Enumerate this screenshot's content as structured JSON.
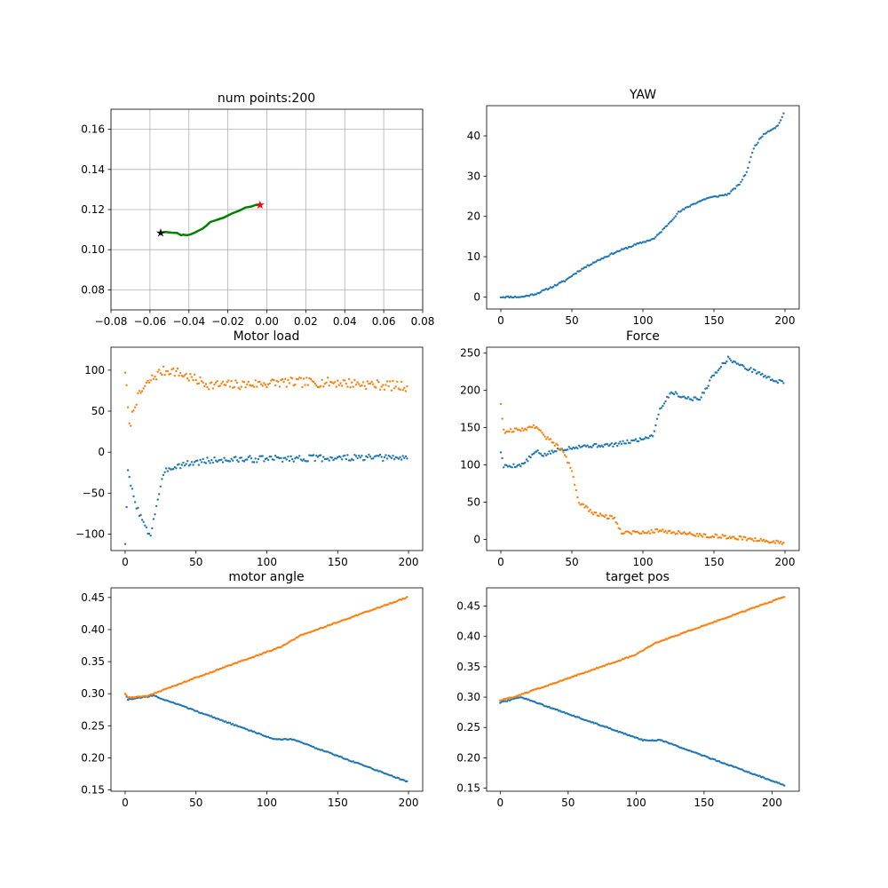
{
  "figure": {
    "background": "#ffffff",
    "colors": {
      "series1": "#1f77b4",
      "series2": "#ff7f0e",
      "path": "#008000",
      "start_marker": "#000000",
      "end_marker": "#ff0000",
      "grid": "#b0b0b0"
    }
  },
  "chart_data": [
    {
      "id": "trajectory",
      "type": "line",
      "title": "num points:200",
      "grid": true,
      "xlim": [
        -0.08,
        0.08
      ],
      "ylim": [
        0.07,
        0.17
      ],
      "xticks": [
        -0.08,
        -0.06,
        -0.04,
        -0.02,
        0.0,
        0.02,
        0.04,
        0.06,
        0.08
      ],
      "xtick_labels": [
        "−0.08",
        "−0.06",
        "−0.04",
        "−0.02",
        "0.00",
        "0.02",
        "0.04",
        "0.06",
        "0.08"
      ],
      "yticks": [
        0.08,
        0.1,
        0.12,
        0.14,
        0.16
      ],
      "ytick_labels": [
        "0.08",
        "0.10",
        "0.12",
        "0.14",
        "0.16"
      ],
      "series": [
        {
          "style": "line",
          "color": "#008000",
          "x": [
            -0.0545,
            -0.052,
            -0.049,
            -0.046,
            -0.044,
            -0.043,
            -0.041,
            -0.039,
            -0.037,
            -0.035,
            -0.033,
            -0.031,
            -0.029,
            -0.026,
            -0.022,
            -0.018,
            -0.014,
            -0.011,
            -0.008,
            -0.006,
            -0.0035
          ],
          "y": [
            0.1085,
            0.1088,
            0.1085,
            0.1083,
            0.1072,
            0.1075,
            0.1072,
            0.1077,
            0.1085,
            0.1095,
            0.1105,
            0.112,
            0.1138,
            0.1148,
            0.116,
            0.118,
            0.1195,
            0.121,
            0.1215,
            0.1222,
            0.1225
          ]
        }
      ],
      "markers": [
        {
          "role": "start",
          "x": -0.0545,
          "y": 0.1085,
          "color": "#000000"
        },
        {
          "role": "end",
          "x": -0.0035,
          "y": 0.1225,
          "color": "#ff0000"
        }
      ]
    },
    {
      "id": "yaw",
      "type": "scatter",
      "title": "YAW",
      "grid": false,
      "xlim": [
        -10,
        210
      ],
      "ylim": [
        -3,
        47.5
      ],
      "xticks": [
        0,
        50,
        100,
        150,
        200
      ],
      "xtick_labels": [
        "0",
        "50",
        "100",
        "150",
        "200"
      ],
      "yticks": [
        0,
        10,
        20,
        30,
        40
      ],
      "ytick_labels": [
        "0",
        "10",
        "20",
        "30",
        "40"
      ],
      "n": 200,
      "series": [
        {
          "color": "#1f77b4",
          "knots_x": [
            0,
            15,
            25,
            35,
            45,
            55,
            65,
            80,
            95,
            108,
            115,
            125,
            135,
            145,
            160,
            168,
            173,
            178,
            185,
            195,
            199
          ],
          "knots_y": [
            0,
            0,
            0.8,
            2.3,
            4,
            6.5,
            8.5,
            11,
            13,
            14.5,
            17,
            21,
            23,
            24.5,
            25.5,
            28,
            31,
            37,
            40.5,
            42.5,
            45.5
          ],
          "jitter": 0.2,
          "seed": 11
        }
      ]
    },
    {
      "id": "motor_load",
      "type": "scatter",
      "title": "Motor load",
      "grid": false,
      "xlim": [
        -10,
        210
      ],
      "ylim": [
        -120,
        128
      ],
      "xticks": [
        0,
        50,
        100,
        150,
        200
      ],
      "xtick_labels": [
        "0",
        "50",
        "100",
        "150",
        "200"
      ],
      "yticks": [
        -100,
        -50,
        0,
        50,
        100
      ],
      "ytick_labels": [
        "−100",
        "−50",
        "0",
        "50",
        "100"
      ],
      "n": 200,
      "series": [
        {
          "color": "#1f77b4",
          "knots_x": [
            0,
            2,
            6,
            10,
            15,
            18,
            22,
            26,
            30,
            40,
            60,
            100,
            150,
            199
          ],
          "knots_y": [
            -110,
            -25,
            -55,
            -75,
            -95,
            -100,
            -65,
            -35,
            -20,
            -15,
            -10,
            -8,
            -7,
            -7
          ],
          "jitter": 4,
          "seed": 3
        },
        {
          "color": "#ff7f0e",
          "knots_x": [
            0,
            3,
            7,
            12,
            18,
            25,
            32,
            40,
            50,
            60,
            80,
            110,
            150,
            199
          ],
          "knots_y": [
            100,
            30,
            60,
            75,
            88,
            98,
            100,
            95,
            88,
            82,
            82,
            85,
            85,
            80
          ],
          "jitter": 6,
          "seed": 7
        }
      ]
    },
    {
      "id": "force",
      "type": "scatter",
      "title": "Force",
      "grid": false,
      "xlim": [
        -10,
        210
      ],
      "ylim": [
        -15,
        258
      ],
      "xticks": [
        0,
        50,
        100,
        150,
        200
      ],
      "xtick_labels": [
        "0",
        "50",
        "100",
        "150",
        "200"
      ],
      "yticks": [
        0,
        50,
        100,
        150,
        200,
        250
      ],
      "ytick_labels": [
        "0",
        "50",
        "100",
        "150",
        "200",
        "250"
      ],
      "n": 200,
      "series": [
        {
          "color": "#1f77b4",
          "knots_x": [
            0,
            2,
            15,
            25,
            30,
            40,
            55,
            80,
            100,
            107,
            112,
            120,
            130,
            140,
            150,
            160,
            170,
            180,
            190,
            199
          ],
          "knots_y": [
            118,
            98,
            100,
            118,
            113,
            120,
            125,
            127,
            135,
            140,
            175,
            198,
            190,
            188,
            222,
            243,
            232,
            225,
            215,
            210
          ],
          "jitter": 2.5,
          "seed": 5
        },
        {
          "color": "#ff7f0e",
          "knots_x": [
            0,
            2,
            15,
            25,
            30,
            40,
            45,
            50,
            55,
            65,
            80,
            85,
            100,
            110,
            120,
            140,
            160,
            180,
            199
          ],
          "knots_y": [
            183,
            145,
            148,
            152,
            140,
            125,
            115,
            90,
            50,
            35,
            28,
            10,
            9,
            12,
            10,
            6,
            3,
            0,
            -5
          ],
          "jitter": 2.5,
          "seed": 9
        }
      ]
    },
    {
      "id": "motor_angle",
      "type": "scatter",
      "title": "motor angle",
      "grid": false,
      "xlim": [
        -10,
        210
      ],
      "ylim": [
        0.148,
        0.465
      ],
      "xticks": [
        0,
        50,
        100,
        150,
        200
      ],
      "xtick_labels": [
        "0",
        "50",
        "100",
        "150",
        "200"
      ],
      "yticks": [
        0.15,
        0.2,
        0.25,
        0.3,
        0.35,
        0.4,
        0.45
      ],
      "ytick_labels": [
        "0.15",
        "0.20",
        "0.25",
        "0.30",
        "0.35",
        "0.40",
        "0.45"
      ],
      "n": 200,
      "series": [
        {
          "color": "#1f77b4",
          "knots_x": [
            0,
            2,
            20,
            105,
            118,
            199
          ],
          "knots_y": [
            0.3,
            0.291,
            0.297,
            0.229,
            0.229,
            0.163
          ],
          "jitter": 0.0008,
          "seed": 2
        },
        {
          "color": "#ff7f0e",
          "knots_x": [
            0,
            2,
            15,
            50,
            100,
            110,
            125,
            199
          ],
          "knots_y": [
            0.3,
            0.294,
            0.296,
            0.325,
            0.365,
            0.373,
            0.392,
            0.45
          ],
          "jitter": 0.0008,
          "seed": 4
        }
      ]
    },
    {
      "id": "target_pos",
      "type": "scatter",
      "title": "target pos",
      "grid": false,
      "xlim": [
        -10,
        220
      ],
      "ylim": [
        0.145,
        0.48
      ],
      "xticks": [
        0,
        50,
        100,
        150,
        200
      ],
      "xtick_labels": [
        "0",
        "50",
        "100",
        "150",
        "200"
      ],
      "yticks": [
        0.15,
        0.2,
        0.25,
        0.3,
        0.35,
        0.4,
        0.45
      ],
      "ytick_labels": [
        "0.15",
        "0.20",
        "0.25",
        "0.30",
        "0.35",
        "0.40",
        "0.45"
      ],
      "n": 210,
      "series": [
        {
          "color": "#1f77b4",
          "knots_x": [
            0,
            15,
            105,
            118,
            209
          ],
          "knots_y": [
            0.291,
            0.3,
            0.229,
            0.229,
            0.155
          ],
          "jitter": 0.0008,
          "seed": 6
        },
        {
          "color": "#ff7f0e",
          "knots_x": [
            0,
            10,
            100,
            115,
            209
          ],
          "knots_y": [
            0.295,
            0.3,
            0.37,
            0.39,
            0.465
          ],
          "jitter": 0.0008,
          "seed": 8
        }
      ]
    }
  ]
}
